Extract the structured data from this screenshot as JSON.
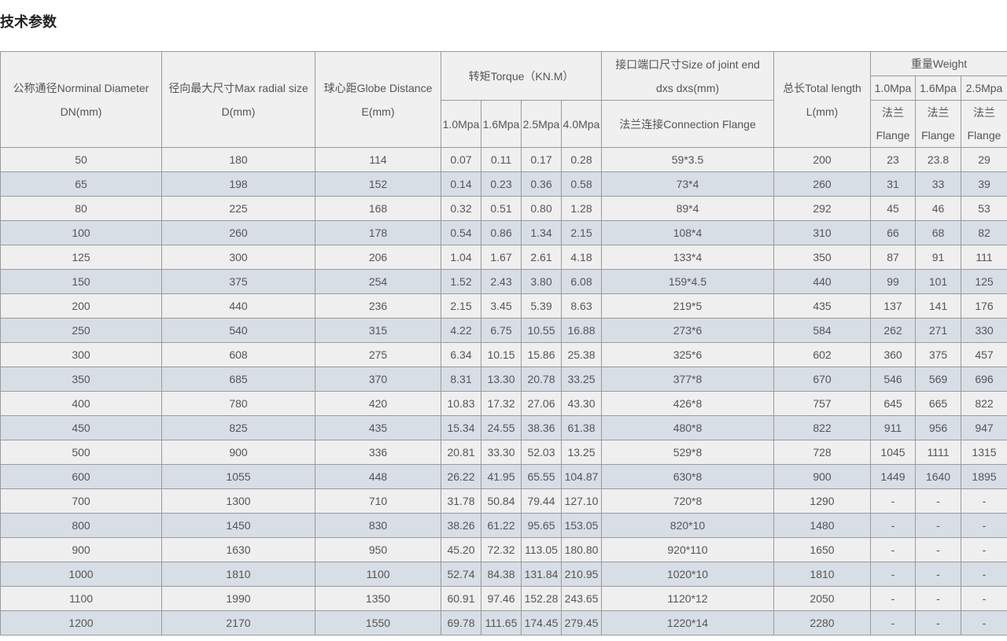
{
  "header": {
    "title": "技术参数"
  },
  "table": {
    "head": {
      "dn": [
        "公称通径Norminal Diameter",
        "DN(mm)"
      ],
      "d": [
        "径向最大尺寸Max radial size",
        "D(mm)"
      ],
      "e": [
        "球心距Globe Distance",
        "E(mm)"
      ],
      "torque": "转矩Torque（KN.M）",
      "torque_pressures": [
        "1.0Mpa",
        "1.6Mpa",
        "2.5Mpa",
        "4.0Mpa"
      ],
      "joint": [
        "接口端口尺寸Size of joint end",
        "dxs dxs(mm)"
      ],
      "connection": "法兰连接Connection Flange",
      "length": [
        "总长Total length",
        "L(mm)"
      ],
      "weight": "重量Weight",
      "weight_pressures": [
        "1.0Mpa",
        "1.6Mpa",
        "2.5Mpa"
      ],
      "flange": [
        [
          "法兰",
          "Flange"
        ],
        [
          "法兰",
          "Flange"
        ],
        [
          "法兰",
          "Flange"
        ]
      ]
    },
    "rows": [
      [
        "50",
        "180",
        "114",
        "0.07",
        "0.11",
        "0.17",
        "0.28",
        "59*3.5",
        "200",
        "23",
        "23.8",
        "29"
      ],
      [
        "65",
        "198",
        "152",
        "0.14",
        "0.23",
        "0.36",
        "0.58",
        "73*4",
        "260",
        "31",
        "33",
        "39"
      ],
      [
        "80",
        "225",
        "168",
        "0.32",
        "0.51",
        "0.80",
        "1.28",
        "89*4",
        "292",
        "45",
        "46",
        "53"
      ],
      [
        "100",
        "260",
        "178",
        "0.54",
        "0.86",
        "1.34",
        "2.15",
        "108*4",
        "310",
        "66",
        "68",
        "82"
      ],
      [
        "125",
        "300",
        "206",
        "1.04",
        "1.67",
        "2.61",
        "4.18",
        "133*4",
        "350",
        "87",
        "91",
        "111"
      ],
      [
        "150",
        "375",
        "254",
        "1.52",
        "2.43",
        "3.80",
        "6.08",
        "159*4.5",
        "440",
        "99",
        "101",
        "125"
      ],
      [
        "200",
        "440",
        "236",
        "2.15",
        "3.45",
        "5.39",
        "8.63",
        "219*5",
        "435",
        "137",
        "141",
        "176"
      ],
      [
        "250",
        "540",
        "315",
        "4.22",
        "6.75",
        "10.55",
        "16.88",
        "273*6",
        "584",
        "262",
        "271",
        "330"
      ],
      [
        "300",
        "608",
        "275",
        "6.34",
        "10.15",
        "15.86",
        "25.38",
        "325*6",
        "602",
        "360",
        "375",
        "457"
      ],
      [
        "350",
        "685",
        "370",
        "8.31",
        "13.30",
        "20.78",
        "33.25",
        "377*8",
        "670",
        "546",
        "569",
        "696"
      ],
      [
        "400",
        "780",
        "420",
        "10.83",
        "17.32",
        "27.06",
        "43.30",
        "426*8",
        "757",
        "645",
        "665",
        "822"
      ],
      [
        "450",
        "825",
        "435",
        "15.34",
        "24.55",
        "38.36",
        "61.38",
        "480*8",
        "822",
        "911",
        "956",
        "947"
      ],
      [
        "500",
        "900",
        "336",
        "20.81",
        "33.30",
        "52.03",
        "13.25",
        "529*8",
        "728",
        "1045",
        "1111",
        "1315"
      ],
      [
        "600",
        "1055",
        "448",
        "26.22",
        "41.95",
        "65.55",
        "104.87",
        "630*8",
        "900",
        "1449",
        "1640",
        "1895"
      ],
      [
        "700",
        "1300",
        "710",
        "31.78",
        "50.84",
        "79.44",
        "127.10",
        "720*8",
        "1290",
        "-",
        "-",
        "-"
      ],
      [
        "800",
        "1450",
        "830",
        "38.26",
        "61.22",
        "95.65",
        "153.05",
        "820*10",
        "1480",
        "-",
        "-",
        "-"
      ],
      [
        "900",
        "1630",
        "950",
        "45.20",
        "72.32",
        "113.05",
        "180.80",
        "920*110",
        "1650",
        "-",
        "-",
        "-"
      ],
      [
        "1000",
        "1810",
        "1100",
        "52.74",
        "84.38",
        "131.84",
        "210.95",
        "1020*10",
        "1810",
        "-",
        "-",
        "-"
      ],
      [
        "1100",
        "1990",
        "1350",
        "60.91",
        "97.46",
        "152.28",
        "243.65",
        "1120*12",
        "2050",
        "-",
        "-",
        "-"
      ],
      [
        "1200",
        "2170",
        "1550",
        "69.78",
        "111.65",
        "174.45",
        "279.45",
        "1220*14",
        "2280",
        "-",
        "-",
        "-"
      ]
    ]
  }
}
